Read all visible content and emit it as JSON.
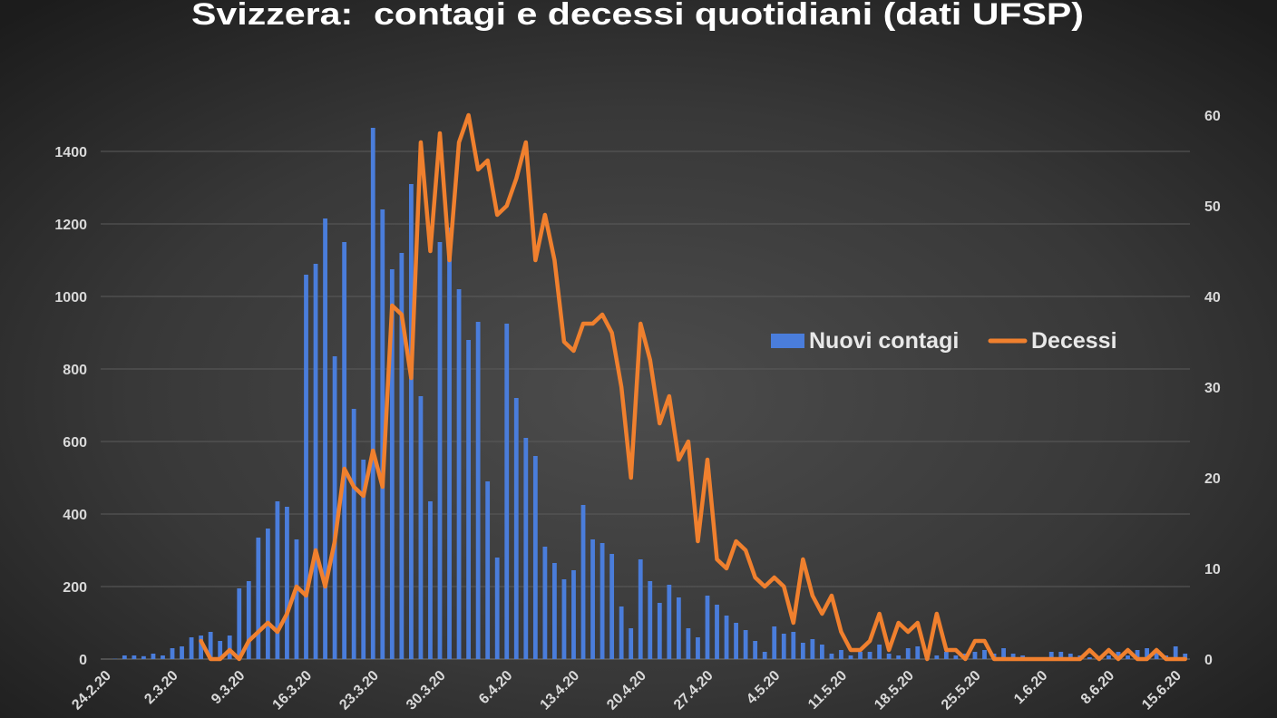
{
  "chart_data": {
    "type": "bar",
    "title": "Svizzera:  contagi e decessi quotidiani (dati UFSP)",
    "x": [
      "24.2.20",
      "25.2.20",
      "26.2.20",
      "27.2.20",
      "28.2.20",
      "29.2.20",
      "1.3.20",
      "2.3.20",
      "3.3.20",
      "4.3.20",
      "5.3.20",
      "6.3.20",
      "7.3.20",
      "8.3.20",
      "9.3.20",
      "10.3.20",
      "11.3.20",
      "12.3.20",
      "13.3.20",
      "14.3.20",
      "15.3.20",
      "16.3.20",
      "17.3.20",
      "18.3.20",
      "19.3.20",
      "20.3.20",
      "21.3.20",
      "22.3.20",
      "23.3.20",
      "24.3.20",
      "25.3.20",
      "26.3.20",
      "27.3.20",
      "28.3.20",
      "29.3.20",
      "30.3.20",
      "31.3.20",
      "1.4.20",
      "2.4.20",
      "3.4.20",
      "4.4.20",
      "5.4.20",
      "6.4.20",
      "7.4.20",
      "8.4.20",
      "9.4.20",
      "10.4.20",
      "11.4.20",
      "12.4.20",
      "13.4.20",
      "14.4.20",
      "15.4.20",
      "16.4.20",
      "17.4.20",
      "18.4.20",
      "19.4.20",
      "20.4.20",
      "21.4.20",
      "22.4.20",
      "23.4.20",
      "24.4.20",
      "25.4.20",
      "26.4.20",
      "27.4.20",
      "28.4.20",
      "29.4.20",
      "30.4.20",
      "1.5.20",
      "2.5.20",
      "3.5.20",
      "4.5.20",
      "5.5.20",
      "6.5.20",
      "7.5.20",
      "8.5.20",
      "9.5.20",
      "10.5.20",
      "11.5.20",
      "12.5.20",
      "13.5.20",
      "14.5.20",
      "15.5.20",
      "16.5.20",
      "17.5.20",
      "18.5.20",
      "19.5.20",
      "20.5.20",
      "21.5.20",
      "22.5.20",
      "23.5.20",
      "24.5.20",
      "25.5.20",
      "26.5.20",
      "27.5.20",
      "28.5.20",
      "29.5.20",
      "30.5.20",
      "31.5.20",
      "1.6.20",
      "2.6.20",
      "3.6.20",
      "4.6.20",
      "5.6.20",
      "6.6.20",
      "7.6.20",
      "8.6.20",
      "9.6.20",
      "10.6.20",
      "11.6.20",
      "12.6.20",
      "13.6.20",
      "14.6.20",
      "15.6.20",
      "16.6.20"
    ],
    "x_ticks": [
      "24.2.20",
      "2.3.20",
      "9.3.20",
      "16.3.20",
      "23.3.20",
      "30.3.20",
      "6.4.20",
      "13.4.20",
      "20.4.20",
      "27.4.20",
      "4.5.20",
      "11.5.20",
      "18.5.20",
      "25.5.20",
      "1.6.20",
      "8.6.20",
      "15.6.20"
    ],
    "series": [
      {
        "name": "Nuovi contagi",
        "type": "bar",
        "axis": "left",
        "color": "#4a7ddb",
        "values": [
          0,
          1,
          10,
          10,
          8,
          15,
          10,
          30,
          35,
          60,
          65,
          75,
          50,
          65,
          195,
          215,
          335,
          360,
          435,
          420,
          330,
          1060,
          1090,
          1215,
          835,
          1150,
          690,
          550,
          1465,
          1240,
          1075,
          1120,
          1310,
          725,
          435,
          1150,
          1190,
          1020,
          880,
          930,
          490,
          280,
          925,
          720,
          610,
          560,
          310,
          265,
          220,
          245,
          425,
          330,
          320,
          290,
          145,
          85,
          275,
          215,
          155,
          205,
          170,
          85,
          60,
          175,
          150,
          120,
          100,
          80,
          50,
          20,
          90,
          70,
          75,
          45,
          55,
          40,
          15,
          25,
          10,
          20,
          20,
          40,
          15,
          10,
          30,
          35,
          15,
          10,
          20,
          10,
          15,
          20,
          25,
          15,
          30,
          15,
          10,
          5,
          5,
          20,
          20,
          15,
          10,
          5,
          5,
          10,
          20,
          10,
          25,
          30,
          25,
          10,
          35,
          15
        ]
      },
      {
        "name": "Decessi",
        "type": "line",
        "axis": "right",
        "color": "#f0802e",
        "values": [
          null,
          null,
          null,
          null,
          null,
          null,
          null,
          null,
          null,
          null,
          2,
          0,
          0,
          1,
          0,
          2,
          3,
          4,
          3,
          5,
          8,
          7,
          12,
          8,
          13,
          21,
          19,
          18,
          23,
          19,
          39,
          38,
          31,
          57,
          45,
          58,
          44,
          57,
          60,
          54,
          55,
          49,
          50,
          53,
          57,
          44,
          49,
          44,
          35,
          34,
          37,
          37,
          38,
          36,
          30,
          20,
          37,
          33,
          26,
          29,
          22,
          24,
          13,
          22,
          11,
          10,
          13,
          12,
          9,
          8,
          9,
          8,
          4,
          11,
          7,
          5,
          7,
          3,
          1,
          1,
          2,
          5,
          1,
          4,
          3,
          4,
          0,
          5,
          1,
          1,
          0,
          2,
          2,
          0,
          0,
          0,
          0,
          0,
          0,
          0,
          0,
          0,
          0,
          1,
          0,
          1,
          0,
          1,
          0,
          0,
          1,
          0,
          0,
          0
        ]
      }
    ],
    "y_left": {
      "ylim": [
        0,
        1500
      ],
      "ticks": [
        0,
        200,
        400,
        600,
        800,
        1000,
        1200,
        1400
      ]
    },
    "y_right": {
      "ylim": [
        0,
        60
      ],
      "ticks": [
        0,
        10,
        20,
        30,
        40,
        50,
        60
      ]
    },
    "grid": true,
    "legend": "center-right"
  }
}
